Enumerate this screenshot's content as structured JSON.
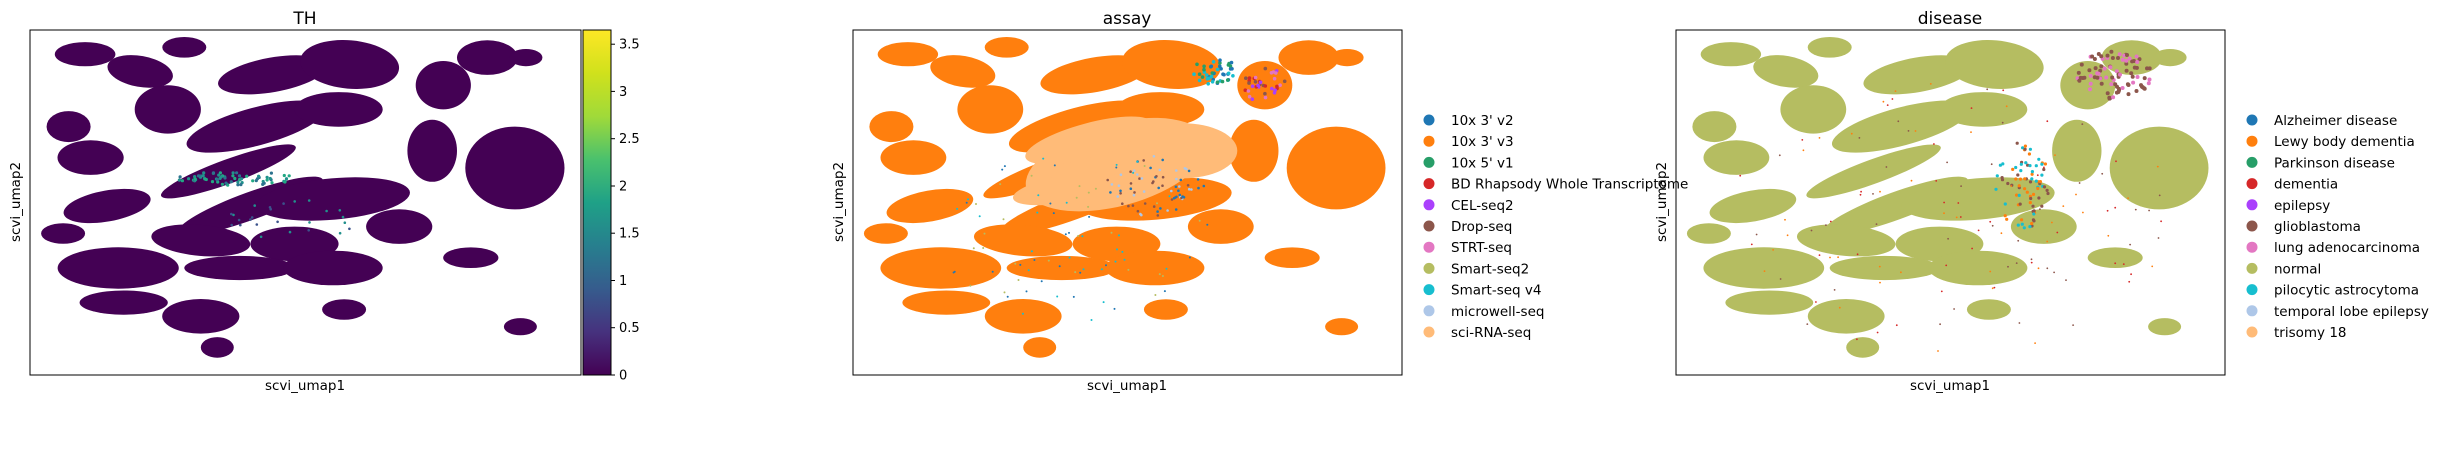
{
  "chart_data": [
    {
      "type": "scatter",
      "title": "TH",
      "xlabel": "scvi_umap1",
      "ylabel": "scvi_umap2",
      "colorbar": {
        "colormap": "viridis",
        "range": [
          0,
          3.65
        ],
        "ticks": [
          0,
          0.5,
          1,
          1.5,
          2,
          2.5,
          3,
          3.5
        ],
        "tick_labels": [
          "0",
          "0.5",
          "1",
          "1.5",
          "2",
          "2.5",
          "3",
          "3.5"
        ]
      },
      "point_color": "#440154",
      "highlight_color": "#21918c"
    },
    {
      "type": "scatter",
      "title": "assay",
      "xlabel": "scvi_umap1",
      "ylabel": "scvi_umap2",
      "legend": "right",
      "categories": [
        {
          "name": "10x 3' v2",
          "color": "#1f77b4"
        },
        {
          "name": "10x 3' v3",
          "color": "#ff7f0e"
        },
        {
          "name": "10x 5' v1",
          "color": "#279e68"
        },
        {
          "name": "BD Rhapsody Whole Transcriptome",
          "color": "#d62728"
        },
        {
          "name": "CEL-seq2",
          "color": "#aa40fc"
        },
        {
          "name": "Drop-seq",
          "color": "#8c564b"
        },
        {
          "name": "STRT-seq",
          "color": "#e377c2"
        },
        {
          "name": "Smart-seq2",
          "color": "#b5bd61"
        },
        {
          "name": "Smart-seq v4",
          "color": "#17becf"
        },
        {
          "name": "microwell-seq",
          "color": "#aec7e8"
        },
        {
          "name": "sci-RNA-seq",
          "color": "#ffbb78"
        }
      ]
    },
    {
      "type": "scatter",
      "title": "disease",
      "xlabel": "scvi_umap1",
      "ylabel": "scvi_umap2",
      "legend": "right",
      "categories": [
        {
          "name": "Alzheimer disease",
          "color": "#1f77b4"
        },
        {
          "name": "Lewy body dementia",
          "color": "#ff7f0e"
        },
        {
          "name": "Parkinson disease",
          "color": "#279e68"
        },
        {
          "name": "dementia",
          "color": "#d62728"
        },
        {
          "name": "epilepsy",
          "color": "#aa40fc"
        },
        {
          "name": "glioblastoma",
          "color": "#8c564b"
        },
        {
          "name": "lung adenocarcinoma",
          "color": "#e377c2"
        },
        {
          "name": "normal",
          "color": "#b5bd61"
        },
        {
          "name": "pilocytic astrocytoma",
          "color": "#17becf"
        },
        {
          "name": "temporal lobe epilepsy",
          "color": "#aec7e8"
        },
        {
          "name": "trisomy 18",
          "color": "#ffbb78"
        }
      ]
    }
  ]
}
